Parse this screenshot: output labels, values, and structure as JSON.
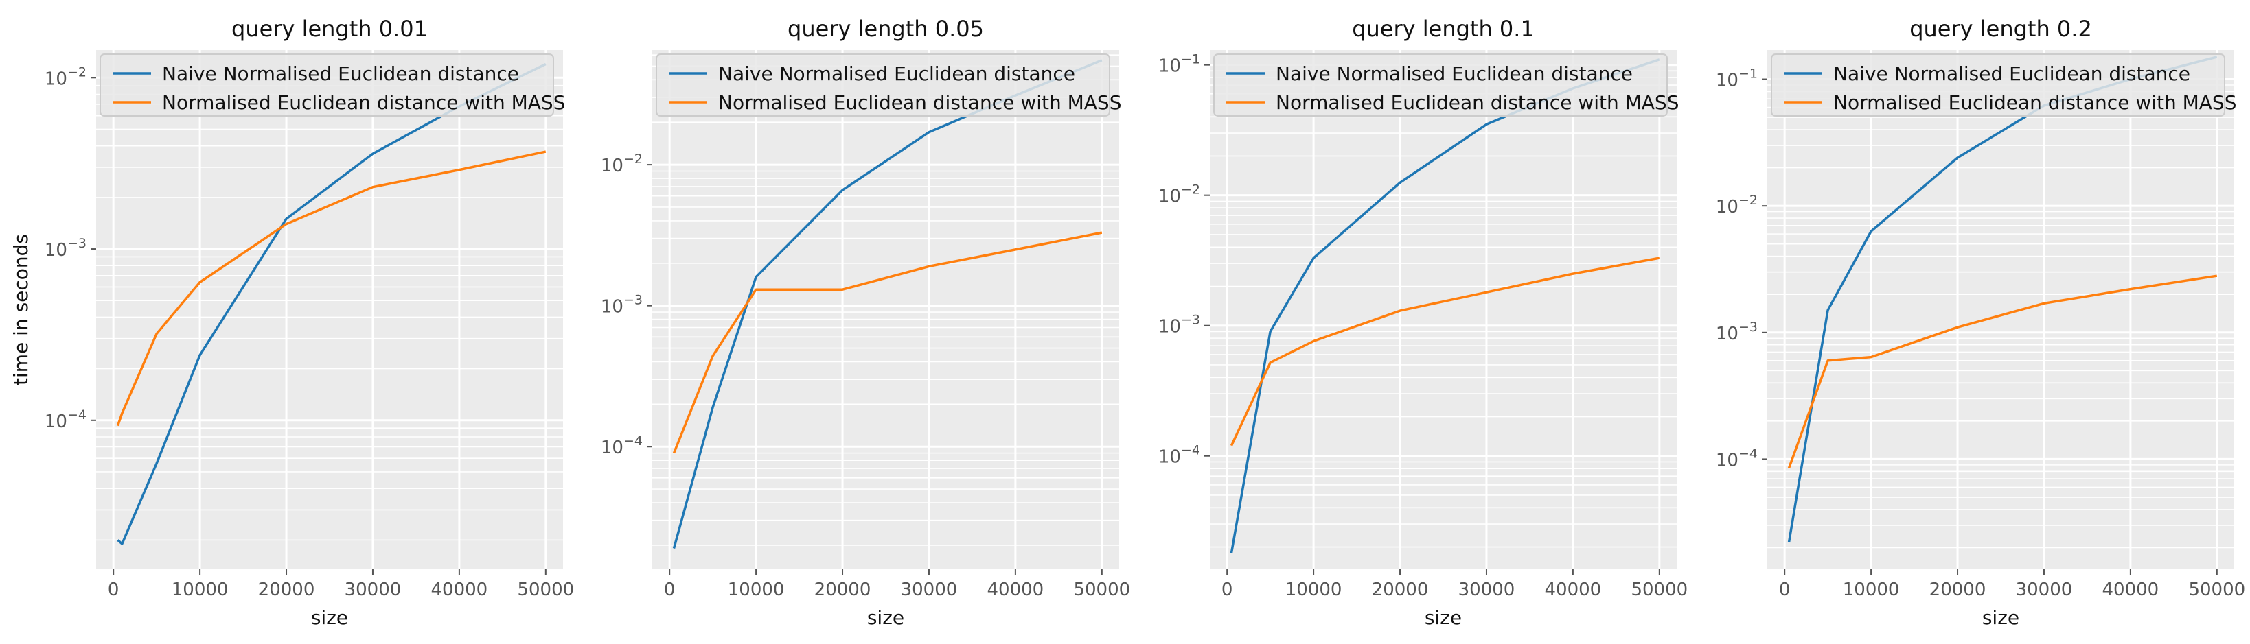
{
  "chart_data": [
    {
      "type": "line",
      "title": "query length 0.01",
      "xlabel": "size",
      "ylabel": "time in seconds",
      "yscale": "log",
      "xlim": [
        -2000,
        52000
      ],
      "ylim": [
        1.35e-05,
        0.0145
      ],
      "xticks": [
        0,
        10000,
        20000,
        30000,
        40000,
        50000
      ],
      "yticks": [
        {
          "value": 0.0001,
          "base": "10",
          "exp": "−4"
        },
        {
          "value": 0.001,
          "base": "10",
          "exp": "−3"
        },
        {
          "value": 0.01,
          "base": "10",
          "exp": "−2"
        }
      ],
      "legend": "upper-left",
      "grid": true,
      "x": [
        500,
        1000,
        5000,
        10000,
        20000,
        30000,
        40000,
        50000
      ],
      "series": [
        {
          "name": "Naive Normalised Euclidean distance",
          "color": "#1f77b4",
          "values": [
            2e-05,
            1.9e-05,
            5.6e-05,
            0.00024,
            0.0015,
            0.0036,
            0.0068,
            0.012
          ]
        },
        {
          "name": "Normalised Euclidean distance with MASS",
          "color": "#ff7f0e",
          "values": [
            9.3e-05,
            0.00011,
            0.00032,
            0.00064,
            0.0014,
            0.0023,
            0.0029,
            0.0037
          ]
        }
      ]
    },
    {
      "type": "line",
      "title": "query length 0.05",
      "xlabel": "size",
      "ylabel": "",
      "yscale": "log",
      "xlim": [
        -2000,
        52000
      ],
      "ylim": [
        1.35e-05,
        0.065
      ],
      "xticks": [
        0,
        10000,
        20000,
        30000,
        40000,
        50000
      ],
      "yticks": [
        {
          "value": 0.0001,
          "base": "10",
          "exp": "−4"
        },
        {
          "value": 0.001,
          "base": "10",
          "exp": "−3"
        },
        {
          "value": 0.01,
          "base": "10",
          "exp": "−2"
        }
      ],
      "legend": "upper-left",
      "grid": true,
      "x": [
        500,
        5000,
        10000,
        20000,
        30000,
        40000,
        50000
      ],
      "series": [
        {
          "name": "Naive Normalised Euclidean distance",
          "color": "#1f77b4",
          "values": [
            1.9e-05,
            0.00019,
            0.0016,
            0.0066,
            0.017,
            0.031,
            0.055
          ]
        },
        {
          "name": "Normalised Euclidean distance with MASS",
          "color": "#ff7f0e",
          "values": [
            9e-05,
            0.00044,
            0.0013,
            0.0013,
            0.0019,
            0.0025,
            0.0033
          ]
        }
      ]
    },
    {
      "type": "line",
      "title": "query length 0.1",
      "xlabel": "size",
      "ylabel": "",
      "yscale": "log",
      "xlim": [
        -2000,
        52000
      ],
      "ylim": [
        1.35e-05,
        0.13
      ],
      "xticks": [
        0,
        10000,
        20000,
        30000,
        40000,
        50000
      ],
      "yticks": [
        {
          "value": 0.0001,
          "base": "10",
          "exp": "−4"
        },
        {
          "value": 0.001,
          "base": "10",
          "exp": "−3"
        },
        {
          "value": 0.01,
          "base": "10",
          "exp": "−2"
        },
        {
          "value": 0.1,
          "base": "10",
          "exp": "−1"
        }
      ],
      "legend": "upper-left",
      "grid": true,
      "x": [
        500,
        5000,
        10000,
        20000,
        30000,
        40000,
        50000
      ],
      "series": [
        {
          "name": "Naive Normalised Euclidean distance",
          "color": "#1f77b4",
          "values": [
            1.8e-05,
            0.0009,
            0.0033,
            0.0125,
            0.035,
            0.066,
            0.11
          ]
        },
        {
          "name": "Normalised Euclidean distance with MASS",
          "color": "#ff7f0e",
          "values": [
            0.00012,
            0.00052,
            0.00076,
            0.0013,
            0.0018,
            0.0025,
            0.0033
          ]
        }
      ]
    },
    {
      "type": "line",
      "title": "query length 0.2",
      "xlabel": "size",
      "ylabel": "",
      "yscale": "log",
      "xlim": [
        -2000,
        52000
      ],
      "ylim": [
        1.35e-05,
        0.17
      ],
      "xticks": [
        0,
        10000,
        20000,
        30000,
        40000,
        50000
      ],
      "yticks": [
        {
          "value": 0.0001,
          "base": "10",
          "exp": "−4"
        },
        {
          "value": 0.001,
          "base": "10",
          "exp": "−3"
        },
        {
          "value": 0.01,
          "base": "10",
          "exp": "−2"
        },
        {
          "value": 0.1,
          "base": "10",
          "exp": "−1"
        }
      ],
      "legend": "upper-left",
      "grid": true,
      "x": [
        500,
        5000,
        10000,
        20000,
        30000,
        40000,
        50000
      ],
      "series": [
        {
          "name": "Naive Normalised Euclidean distance",
          "color": "#1f77b4",
          "values": [
            2.2e-05,
            0.0015,
            0.0063,
            0.024,
            0.062,
            0.1,
            0.15
          ]
        },
        {
          "name": "Normalised Euclidean distance with MASS",
          "color": "#ff7f0e",
          "values": [
            8.5e-05,
            0.0006,
            0.00064,
            0.0011,
            0.0017,
            0.0022,
            0.0028
          ]
        }
      ]
    }
  ]
}
